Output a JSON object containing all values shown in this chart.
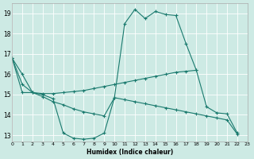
{
  "xlabel": "Humidex (Indice chaleur)",
  "bg_color": "#cdeae4",
  "line_color": "#1a7a6e",
  "grid_color": "#ffffff",
  "xlim": [
    0,
    23
  ],
  "ylim": [
    12.7,
    19.5
  ],
  "xticks": [
    0,
    1,
    2,
    3,
    4,
    5,
    6,
    7,
    8,
    9,
    10,
    11,
    12,
    13,
    14,
    15,
    16,
    17,
    18,
    19,
    20,
    21,
    22,
    23
  ],
  "yticks": [
    13,
    14,
    15,
    16,
    17,
    18,
    19
  ],
  "line1_x": [
    0,
    1,
    2,
    3,
    4,
    5,
    6,
    7,
    8,
    9,
    10,
    11,
    12,
    13,
    14,
    15,
    16,
    17,
    18,
    19,
    20,
    21,
    22
  ],
  "line1_y": [
    16.8,
    16.0,
    15.1,
    15.0,
    14.8,
    13.1,
    12.85,
    12.8,
    12.85,
    13.1,
    14.85,
    18.5,
    19.2,
    18.75,
    19.1,
    18.95,
    18.9,
    17.5,
    16.2,
    14.4,
    14.1,
    14.05,
    13.1
  ],
  "line2_x": [
    0,
    1,
    2,
    3,
    4,
    5,
    6,
    7,
    8,
    9,
    10,
    11,
    12,
    13,
    14,
    15,
    16,
    17,
    18
  ],
  "line2_y": [
    16.8,
    15.1,
    15.1,
    15.05,
    15.05,
    15.1,
    15.15,
    15.2,
    15.3,
    15.4,
    15.5,
    15.6,
    15.7,
    15.8,
    15.9,
    16.0,
    16.1,
    16.15,
    16.2
  ],
  "line3_x": [
    0,
    1,
    2,
    3,
    4,
    5,
    6,
    7,
    8,
    9,
    10,
    11,
    12,
    13,
    14,
    15,
    16,
    17,
    18,
    19,
    20,
    21,
    22
  ],
  "line3_y": [
    16.8,
    15.5,
    15.1,
    14.9,
    14.65,
    14.5,
    14.3,
    14.15,
    14.05,
    13.95,
    14.85,
    14.75,
    14.65,
    14.55,
    14.45,
    14.35,
    14.25,
    14.15,
    14.05,
    13.95,
    13.85,
    13.75,
    13.05
  ]
}
